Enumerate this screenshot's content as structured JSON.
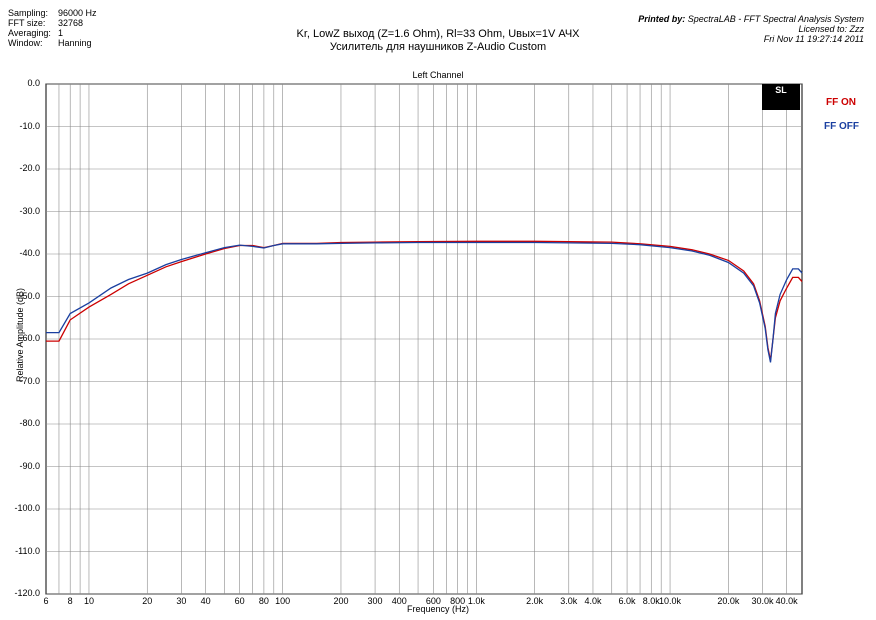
{
  "info": [
    {
      "k": "Sampling:",
      "v": "96000 Hz"
    },
    {
      "k": "FFT size:",
      "v": "32768"
    },
    {
      "k": "Averaging:",
      "v": "1"
    },
    {
      "k": "Window:",
      "v": "Hanning"
    }
  ],
  "printed": {
    "line1_bold": "Printed by:",
    "line1": "SpectraLAB - FFT Spectral Analysis System",
    "line2": "Licensed to: Zzz",
    "line3": "Fri Nov 11 19:27:14 2011"
  },
  "logo_text": "SL",
  "chart_data": {
    "type": "line",
    "title": "Kr, LowZ выход (Z=1.6 Ohm), Rl=33 Ohm, Uвых=1V  АЧХ",
    "subtitle": "Усилитель для наушников Z-Audio Custom",
    "panel_title": "Left Channel",
    "xlabel": "Frequency (Hz)",
    "ylabel": "Relative Amplitude (dB)",
    "xscale": "log",
    "xlim": [
      6,
      48000
    ],
    "ylim": [
      -120,
      0
    ],
    "grid": true,
    "legend_position": "top-right",
    "yticks": [
      "0.0",
      "-10.0",
      "-20.0",
      "-30.0",
      "-40.0",
      "-50.0",
      "-60.0",
      "-70.0",
      "-80.0",
      "-90.0",
      "-100.0",
      "-110.0",
      "-120.0"
    ],
    "xticks": [
      {
        "v": 6,
        "l": "6"
      },
      {
        "v": 8,
        "l": "8"
      },
      {
        "v": 10,
        "l": "10"
      },
      {
        "v": 20,
        "l": "20"
      },
      {
        "v": 30,
        "l": "30"
      },
      {
        "v": 40,
        "l": "40"
      },
      {
        "v": 60,
        "l": "60"
      },
      {
        "v": 80,
        "l": "80"
      },
      {
        "v": 100,
        "l": "100"
      },
      {
        "v": 200,
        "l": "200"
      },
      {
        "v": 300,
        "l": "300"
      },
      {
        "v": 400,
        "l": "400"
      },
      {
        "v": 600,
        "l": "600"
      },
      {
        "v": 800,
        "l": "800"
      },
      {
        "v": 1000,
        "l": "1.0k"
      },
      {
        "v": 2000,
        "l": "2.0k"
      },
      {
        "v": 3000,
        "l": "3.0k"
      },
      {
        "v": 4000,
        "l": "4.0k"
      },
      {
        "v": 6000,
        "l": "6.0k"
      },
      {
        "v": 8000,
        "l": "8.0k"
      },
      {
        "v": 10000,
        "l": "10.0k"
      },
      {
        "v": 20000,
        "l": "20.0k"
      },
      {
        "v": 30000,
        "l": "30.0k"
      },
      {
        "v": 40000,
        "l": "40.0k"
      }
    ],
    "series": [
      {
        "name": "FF ON",
        "color": "#cc0000",
        "x": [
          6,
          7,
          8,
          10,
          13,
          16,
          20,
          25,
          30,
          40,
          50,
          60,
          70,
          80,
          90,
          100,
          150,
          200,
          300,
          500,
          1000,
          2000,
          3000,
          5000,
          7000,
          10000,
          13000,
          16000,
          20000,
          24000,
          27000,
          29000,
          31000,
          32000,
          33000,
          34000,
          35000,
          37000,
          40000,
          43000,
          46000,
          48000
        ],
        "y": [
          -60.5,
          -60.5,
          -55.5,
          -52.5,
          -49.5,
          -47,
          -45,
          -43,
          -41.8,
          -40,
          -38.7,
          -38,
          -38,
          -38.5,
          -38,
          -37.5,
          -37.5,
          -37.3,
          -37.2,
          -37.1,
          -37.0,
          -37.0,
          -37.1,
          -37.2,
          -37.6,
          -38.2,
          -39,
          -40,
          -41.5,
          -44,
          -47,
          -51,
          -57,
          -62,
          -65,
          -60,
          -55,
          -51,
          -48,
          -45.5,
          -45.5,
          -46.5
        ]
      },
      {
        "name": "FF OFF",
        "color": "#1a3fa0",
        "x": [
          6,
          7,
          8,
          10,
          13,
          16,
          20,
          25,
          30,
          40,
          50,
          60,
          70,
          80,
          90,
          100,
          150,
          200,
          300,
          500,
          1000,
          2000,
          3000,
          5000,
          7000,
          10000,
          13000,
          16000,
          20000,
          24000,
          27000,
          29000,
          31000,
          32000,
          33000,
          34000,
          35000,
          37000,
          40000,
          43000,
          46000,
          48000
        ],
        "y": [
          -58.5,
          -58.5,
          -54,
          -51.5,
          -48,
          -46,
          -44.5,
          -42.5,
          -41.3,
          -39.7,
          -38.5,
          -37.9,
          -38.2,
          -38.6,
          -38,
          -37.6,
          -37.6,
          -37.5,
          -37.4,
          -37.3,
          -37.3,
          -37.3,
          -37.4,
          -37.5,
          -37.8,
          -38.5,
          -39.3,
          -40.3,
          -42,
          -44.5,
          -47.5,
          -51.5,
          -57.5,
          -62.5,
          -65.5,
          -60,
          -54,
          -49.5,
          -46,
          -43.5,
          -43.5,
          -44.5
        ]
      }
    ]
  }
}
